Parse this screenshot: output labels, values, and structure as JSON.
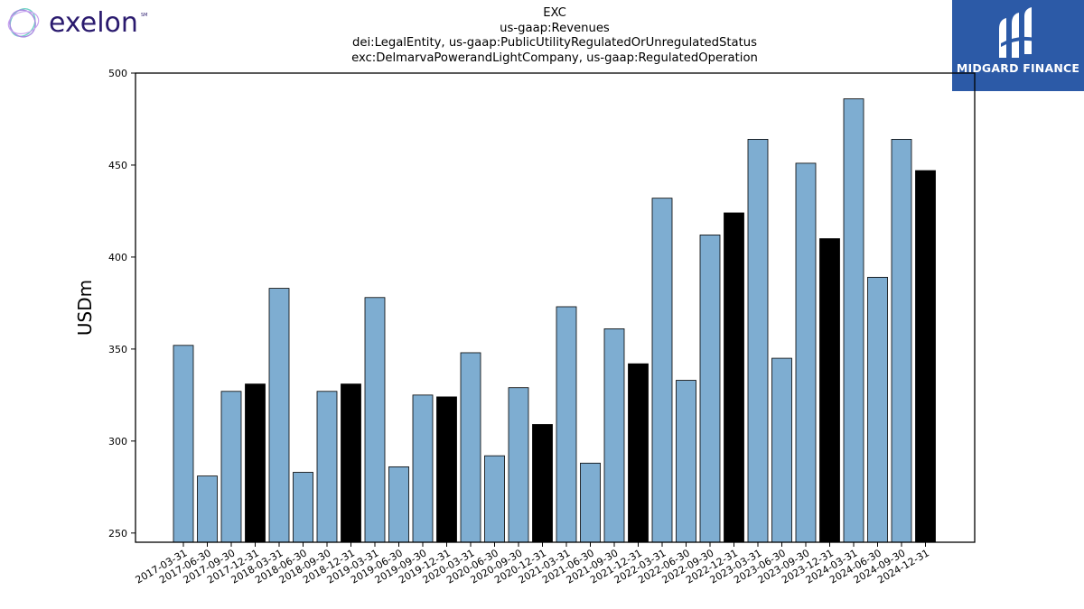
{
  "logos": {
    "left_text": "exelon",
    "left_mark": "SM",
    "right_text": "MIDGARD FINANCE"
  },
  "titles": {
    "line1": "EXC",
    "line2": "us-gaap:Revenues",
    "line3": "dei:LegalEntity, us-gaap:PublicUtilityRegulatedOrUnregulatedStatus",
    "line4": "exc:DelmarvaPowerandLightCompany, us-gaap:RegulatedOperation"
  },
  "colors": {
    "quarter_bar": "#7eadd1",
    "year_end_bar": "#000000",
    "bar_edge": "#000000",
    "exelon_text": "#2a1a6e",
    "midgard_bg": "#2c5aa7"
  },
  "chart_data": {
    "type": "bar",
    "ylabel": "USDm",
    "ylim": [
      245,
      500
    ],
    "yticks": [
      250,
      300,
      350,
      400,
      450,
      500
    ],
    "grid": false,
    "categories": [
      "2017-03-31",
      "2017-06-30",
      "2017-09-30",
      "2017-12-31",
      "2018-03-31",
      "2018-06-30",
      "2018-09-30",
      "2018-12-31",
      "2019-03-31",
      "2019-06-30",
      "2019-09-30",
      "2019-12-31",
      "2020-03-31",
      "2020-06-30",
      "2020-09-30",
      "2020-12-31",
      "2021-03-31",
      "2021-06-30",
      "2021-09-30",
      "2021-12-31",
      "2022-03-31",
      "2022-06-30",
      "2022-09-30",
      "2022-12-31",
      "2023-03-31",
      "2023-06-30",
      "2023-09-30",
      "2023-12-31",
      "2024-03-31",
      "2024-06-30",
      "2024-09-30",
      "2024-12-31"
    ],
    "values": [
      352,
      281,
      327,
      331,
      383,
      283,
      327,
      331,
      378,
      286,
      325,
      324,
      348,
      292,
      329,
      309,
      373,
      288,
      361,
      342,
      432,
      333,
      412,
      424,
      464,
      345,
      451,
      410,
      486,
      389,
      464,
      447
    ],
    "year_end": [
      false,
      false,
      false,
      true,
      false,
      false,
      false,
      true,
      false,
      false,
      false,
      true,
      false,
      false,
      false,
      true,
      false,
      false,
      false,
      true,
      false,
      false,
      false,
      true,
      false,
      false,
      false,
      true,
      false,
      false,
      false,
      true
    ]
  }
}
